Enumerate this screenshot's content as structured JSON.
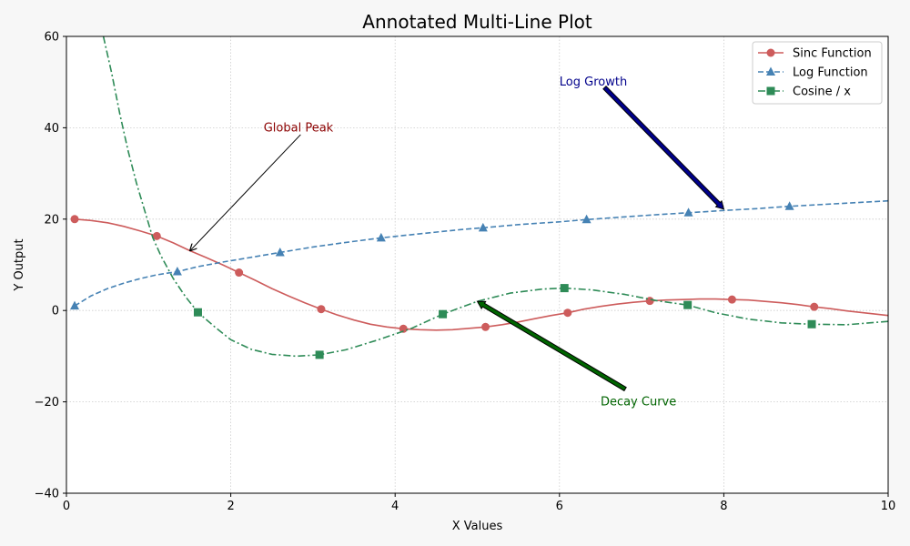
{
  "chart_data": {
    "type": "line",
    "title": "Annotated Multi-Line Plot",
    "xlabel": "X Values",
    "ylabel": "Y Output",
    "xlim": [
      0,
      10
    ],
    "ylim": [
      -40,
      60
    ],
    "xticks": [
      0,
      2,
      4,
      6,
      8,
      10
    ],
    "yticks": [
      -40,
      -20,
      0,
      20,
      40,
      60
    ],
    "grid": true,
    "legend_position": "top-right",
    "series": [
      {
        "name": "Sinc Function",
        "color": "#cd5c5c",
        "linestyle": "solid",
        "marker": "circle",
        "x": [
          0.1,
          0.3,
          0.5,
          0.7,
          0.9,
          1.1,
          1.3,
          1.5,
          1.7,
          1.9,
          2.1,
          2.3,
          2.5,
          2.7,
          2.9,
          3.1,
          3.3,
          3.5,
          3.7,
          3.9,
          4.1,
          4.3,
          4.5,
          4.7,
          4.9,
          5.1,
          5.3,
          5.5,
          5.7,
          5.9,
          6.1,
          6.3,
          6.5,
          6.7,
          6.9,
          7.1,
          7.3,
          7.5,
          7.7,
          7.9,
          8.1,
          8.3,
          8.5,
          8.7,
          8.9,
          9.1,
          9.3,
          9.5,
          9.7,
          9.9,
          10.0
        ],
        "y": [
          20.0,
          19.7,
          19.2,
          18.4,
          17.4,
          16.3,
          14.8,
          13.1,
          11.6,
          10.0,
          8.3,
          6.6,
          4.8,
          3.2,
          1.7,
          0.3,
          -1.0,
          -2.1,
          -3.0,
          -3.6,
          -4.0,
          -4.2,
          -4.3,
          -4.2,
          -3.9,
          -3.6,
          -3.1,
          -2.5,
          -1.8,
          -1.1,
          -0.5,
          0.3,
          0.9,
          1.4,
          1.8,
          2.1,
          2.3,
          2.4,
          2.5,
          2.5,
          2.4,
          2.3,
          2.0,
          1.7,
          1.3,
          0.8,
          0.4,
          -0.1,
          -0.5,
          -0.9,
          -1.1
        ],
        "marker_indices": [
          0,
          5,
          10,
          15,
          20,
          25,
          30,
          35,
          40,
          45
        ]
      },
      {
        "name": "Log Function",
        "color": "#4682b4",
        "linestyle": "dashed",
        "marker": "triangle",
        "x": [
          0.1,
          0.3,
          0.5,
          0.7,
          0.9,
          1.1,
          1.35,
          1.6,
          1.9,
          2.2,
          2.6,
          3.0,
          3.4,
          3.83,
          4.3,
          4.8,
          5.07,
          5.5,
          6.0,
          6.33,
          6.8,
          7.2,
          7.57,
          8.0,
          8.4,
          8.8,
          9.3,
          9.7,
          10.0
        ],
        "y": [
          1.0,
          3.2,
          4.8,
          6.0,
          7.0,
          7.8,
          8.5,
          9.6,
          10.6,
          11.5,
          12.7,
          13.9,
          14.9,
          15.9,
          16.8,
          17.7,
          18.1,
          18.8,
          19.4,
          19.9,
          20.5,
          21.0,
          21.4,
          21.9,
          22.3,
          22.8,
          23.3,
          23.7,
          24.0
        ],
        "marker_indices": [
          0,
          6,
          10,
          13,
          16,
          19,
          22,
          25
        ]
      },
      {
        "name": "Cosine / x",
        "color": "#2e8b57",
        "linestyle": "dashdot",
        "marker": "square",
        "x": [
          0.45,
          0.55,
          0.65,
          0.75,
          0.85,
          0.95,
          1.05,
          1.15,
          1.3,
          1.45,
          1.6,
          1.8,
          2.0,
          2.25,
          2.5,
          2.8,
          3.08,
          3.4,
          3.8,
          4.2,
          4.58,
          5.0,
          5.4,
          5.8,
          6.06,
          6.4,
          6.8,
          7.2,
          7.56,
          7.9,
          8.3,
          8.7,
          9.07,
          9.5,
          10.0
        ],
        "y": [
          60,
          52,
          43,
          35,
          28,
          22,
          16,
          12,
          7,
          3,
          -0.4,
          -3.5,
          -6.4,
          -8.5,
          -9.6,
          -10.0,
          -9.7,
          -8.6,
          -6.4,
          -3.9,
          -0.8,
          2.0,
          3.8,
          4.7,
          4.9,
          4.5,
          3.5,
          2.1,
          1.2,
          -0.5,
          -1.9,
          -2.7,
          -3.0,
          -3.1,
          -2.4
        ],
        "marker_indices": [
          10,
          16,
          20,
          24,
          28,
          32
        ]
      }
    ],
    "annotations": [
      {
        "text": "Global Peak",
        "color": "#8b0000",
        "text_x": 2.4,
        "text_y": 40,
        "xy": [
          1.5,
          13
        ],
        "from": [
          2.85,
          38.5
        ],
        "arrow": "thin",
        "arrow_color": "#000000",
        "anchor": "start"
      },
      {
        "text": "Log Growth",
        "color": "#00008b",
        "text_x": 6.0,
        "text_y": 50,
        "xy": [
          8.0,
          22.2
        ],
        "from": [
          6.55,
          48.8
        ],
        "arrow": "wide",
        "arrow_color": "#00008b",
        "anchor": "start"
      },
      {
        "text": "Decay Curve",
        "color": "#006400",
        "text_x": 6.5,
        "text_y": -20,
        "xy": [
          5.0,
          2.0
        ],
        "from": [
          6.8,
          -17.2
        ],
        "arrow": "wide",
        "arrow_color": "#006400",
        "anchor": "start"
      }
    ]
  }
}
